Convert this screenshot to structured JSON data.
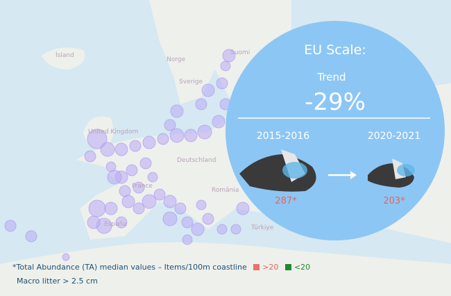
{
  "map": {
    "labels": [
      "Ísland",
      "Norge",
      "Suomi",
      "Sverige",
      "United Kingdom",
      "Deutschland",
      "France",
      "România",
      "España",
      "Türkiye"
    ]
  },
  "panel": {
    "title": "EU Scale:",
    "trend_label": "Trend",
    "trend_value": "-29%",
    "periods": [
      {
        "label": "2015-2016",
        "value": "287*"
      },
      {
        "label": "2020-2021",
        "value": "203*"
      }
    ]
  },
  "footnote": {
    "line1": "*Total Abundance (TA) median values – Items/100m coastline",
    "legend": [
      ">20",
      "<20"
    ],
    "line2": "Macro litter > 2.5 cm"
  }
}
